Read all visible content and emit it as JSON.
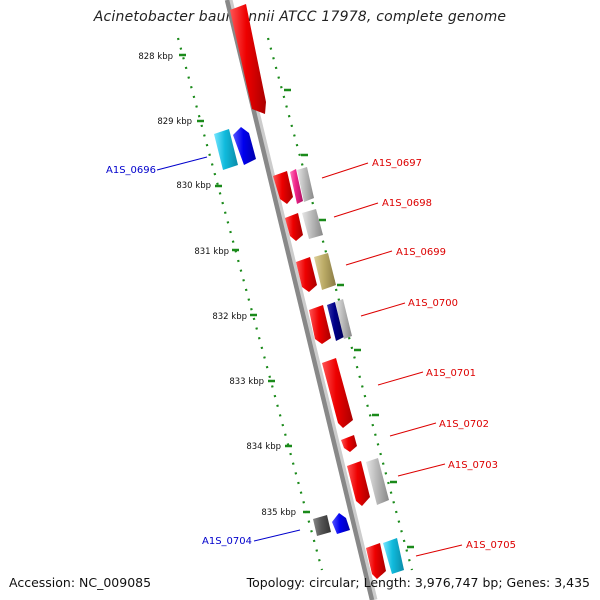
{
  "title": "Acinetobacter baumannii ATCC 17978, complete genome",
  "accession": "Accession: NC_009085",
  "topology": "Topology: circular; Length: 3,976,747 bp; Genes: 3,435",
  "scale_labels": [
    "828 kbp",
    "829 kbp",
    "830 kbp",
    "831 kbp",
    "832 kbp",
    "833 kbp",
    "834 kbp",
    "835 kbp"
  ],
  "gene_labels": [
    {
      "text": "A1S_0696",
      "color": "#0000cc"
    },
    {
      "text": "A1S_0697",
      "color": "#dd0000"
    },
    {
      "text": "A1S_0698",
      "color": "#dd0000"
    },
    {
      "text": "A1S_0699",
      "color": "#dd0000"
    },
    {
      "text": "A1S_0700",
      "color": "#dd0000"
    },
    {
      "text": "A1S_0701",
      "color": "#dd0000"
    },
    {
      "text": "A1S_0702",
      "color": "#dd0000"
    },
    {
      "text": "A1S_0703",
      "color": "#dd0000"
    },
    {
      "text": "A1S_0704",
      "color": "#0000cc"
    },
    {
      "text": "A1S_0705",
      "color": "#dd0000"
    }
  ],
  "colors": {
    "backbone": "#888888",
    "scale_dots": "#1a8a1a",
    "forward_gene": "#ee0000",
    "reverse_gene": "#0000ee",
    "cyan_gene": "#11bbdd",
    "magenta_gene": "#ee2288",
    "grey_gene": "#bbbbbb",
    "olive_gene": "#bbaa66",
    "navy_gene": "#000088",
    "dark_grey_gene": "#555555"
  }
}
